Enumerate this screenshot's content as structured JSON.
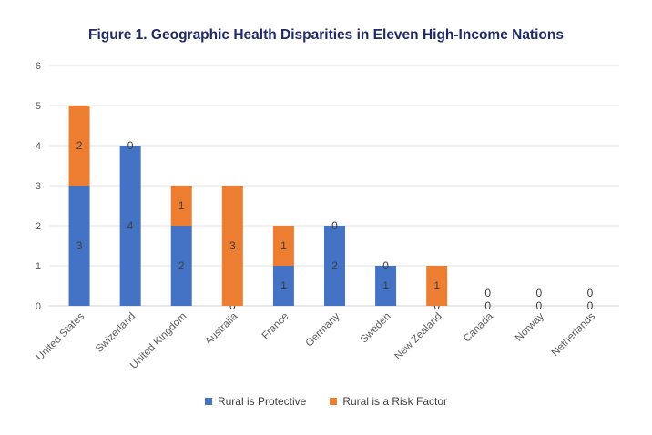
{
  "chart_data": {
    "type": "bar",
    "stacked": true,
    "title": "Figure 1. Geographic Health Disparities in Eleven High-Income Nations",
    "xlabel": "",
    "ylabel": "",
    "ylim": [
      0,
      6
    ],
    "yticks": [
      "0",
      "1",
      "2",
      "3",
      "4",
      "5",
      "6"
    ],
    "grid": true,
    "legend_position": "bottom",
    "categories": [
      "United States",
      "Swizerland",
      "United Kingdom",
      "Australia",
      "France",
      "Germany",
      "Sweden",
      "New Zealand",
      "Canada",
      "Norway",
      "Netherlands"
    ],
    "series": [
      {
        "name": "Rural is Protective",
        "color": "#4472C4",
        "values": [
          3,
          4,
          2,
          0,
          1,
          2,
          1,
          0,
          0,
          0,
          0
        ]
      },
      {
        "name": "Rural is a Risk Factor",
        "color": "#ED7D31",
        "values": [
          2,
          0,
          1,
          3,
          1,
          0,
          0,
          1,
          0,
          0,
          0
        ]
      }
    ]
  }
}
